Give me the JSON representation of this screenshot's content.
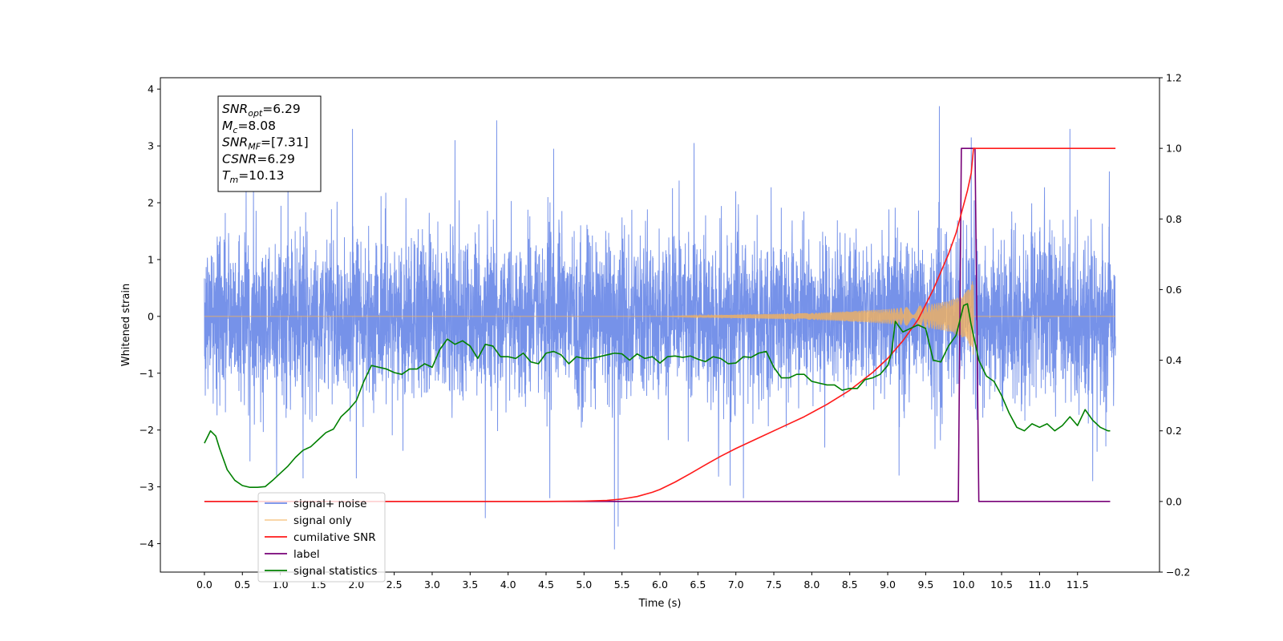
{
  "chart_data": {
    "type": "line",
    "title": "",
    "xlabel": "Time (s)",
    "ylabel": "Whitened strain",
    "xlim": [
      -0.58,
      12.58
    ],
    "ylim": [
      -4.5,
      4.2
    ],
    "y2lim": [
      -0.2,
      1.2
    ],
    "x_ticks": [
      0.0,
      0.5,
      1.0,
      1.5,
      2.0,
      2.5,
      3.0,
      3.5,
      4.0,
      4.5,
      5.0,
      5.5,
      6.0,
      6.5,
      7.0,
      7.5,
      8.0,
      8.5,
      9.0,
      9.5,
      10.0,
      10.5,
      11.0,
      11.5
    ],
    "x_tick_labels": [
      "0.0",
      "0.5",
      "1.0",
      "1.5",
      "2.0",
      "2.5",
      "3.0",
      "3.5",
      "4.0",
      "4.5",
      "5.0",
      "5.5",
      "6.0",
      "6.5",
      "7.0",
      "7.5",
      "8.0",
      "8.5",
      "9.0",
      "9.5",
      "10.0",
      "10.5",
      "11.0",
      "11.5"
    ],
    "y_ticks": [
      4,
      3,
      2,
      1,
      0,
      -1,
      -2,
      -3,
      -4
    ],
    "y_tick_labels": [
      "4",
      "3",
      "2",
      "1",
      "0",
      "−1",
      "−2",
      "−3",
      "−4"
    ],
    "y2_ticks": [
      1.2,
      1.0,
      0.8,
      0.6,
      0.4,
      0.2,
      0.0,
      -0.2
    ],
    "y2_tick_labels": [
      "1.2",
      "1.0",
      "0.8",
      "0.6",
      "0.4",
      "0.2",
      "0.0",
      "−0.2"
    ],
    "grid": false,
    "legend_position": "bottom-left",
    "noise": {
      "x_range": [
        0.0,
        12.0
      ],
      "envelope": [
        1.2,
        1.3
      ],
      "peaks": [
        [
          0.55,
          2.3
        ],
        [
          1.1,
          2.4
        ],
        [
          1.95,
          3.3
        ],
        [
          3.3,
          3.1
        ],
        [
          3.85,
          3.45
        ],
        [
          4.6,
          2.95
        ],
        [
          6.45,
          3.05
        ],
        [
          9.15,
          3.85
        ],
        [
          9.68,
          3.7
        ],
        [
          10.1,
          3.15
        ],
        [
          11.4,
          3.3
        ],
        [
          11.92,
          2.55
        ]
      ],
      "troughs": [
        [
          0.6,
          -2.55
        ],
        [
          0.95,
          -2.8
        ],
        [
          1.3,
          -2.85
        ],
        [
          2.0,
          -2.85
        ],
        [
          3.7,
          -3.55
        ],
        [
          4.55,
          -3.2
        ],
        [
          5.4,
          -4.1
        ],
        [
          5.45,
          -3.7
        ],
        [
          7.1,
          -3.2
        ],
        [
          9.15,
          -2.8
        ],
        [
          11.7,
          -2.9
        ]
      ]
    },
    "series": [
      {
        "name": "signal+ noise",
        "color": "#6f8ce8",
        "axis": "left",
        "kind": "noise"
      },
      {
        "name": "signal only",
        "color": "#f4b25c",
        "axis": "left",
        "kind": "chirp",
        "x": [
          0.0,
          6.0,
          7.0,
          8.0,
          8.5,
          9.0,
          9.5,
          9.8,
          10.0,
          10.1,
          10.13
        ],
        "amplitude": [
          0.0,
          0.0,
          0.03,
          0.06,
          0.09,
          0.13,
          0.2,
          0.27,
          0.38,
          0.55,
          0.7
        ],
        "after": {
          "x": [
            10.13,
            12.0
          ],
          "y": [
            0.0,
            0.0
          ]
        }
      },
      {
        "name": "cumilative SNR",
        "color": "#ff1a1a",
        "axis": "right",
        "x": [
          0.0,
          4.5,
          5.0,
          5.3,
          5.5,
          5.7,
          5.9,
          6.0,
          6.2,
          6.4,
          6.6,
          6.8,
          7.0,
          7.3,
          7.6,
          7.9,
          8.2,
          8.5,
          8.8,
          9.0,
          9.2,
          9.4,
          9.6,
          9.8,
          9.9,
          10.0,
          10.05,
          10.1,
          10.13,
          12.0
        ],
        "values": [
          0.0,
          0.0,
          0.001,
          0.003,
          0.007,
          0.014,
          0.026,
          0.034,
          0.055,
          0.079,
          0.104,
          0.128,
          0.15,
          0.18,
          0.21,
          0.24,
          0.275,
          0.315,
          0.365,
          0.405,
          0.455,
          0.515,
          0.6,
          0.7,
          0.76,
          0.84,
          0.88,
          0.93,
          1.0,
          1.0
        ]
      },
      {
        "name": "label",
        "color": "#770077",
        "axis": "right",
        "x": [
          0.0,
          9.93,
          9.97,
          10.15,
          10.2,
          11.93
        ],
        "values": [
          0.0,
          0.0,
          1.0,
          1.0,
          0.0,
          0.0
        ]
      },
      {
        "name": "signal statistics",
        "color": "#008000",
        "axis": "right",
        "x": [
          0.0,
          0.08,
          0.15,
          0.2,
          0.3,
          0.4,
          0.5,
          0.6,
          0.7,
          0.8,
          0.9,
          1.0,
          1.1,
          1.2,
          1.3,
          1.4,
          1.5,
          1.6,
          1.7,
          1.8,
          1.9,
          2.0,
          2.1,
          2.2,
          2.3,
          2.4,
          2.5,
          2.6,
          2.7,
          2.8,
          2.9,
          3.0,
          3.1,
          3.2,
          3.3,
          3.4,
          3.5,
          3.6,
          3.7,
          3.8,
          3.9,
          4.0,
          4.1,
          4.2,
          4.3,
          4.4,
          4.5,
          4.6,
          4.7,
          4.8,
          4.9,
          5.0,
          5.1,
          5.2,
          5.3,
          5.4,
          5.5,
          5.6,
          5.7,
          5.8,
          5.9,
          6.0,
          6.1,
          6.2,
          6.3,
          6.4,
          6.5,
          6.6,
          6.7,
          6.8,
          6.9,
          7.0,
          7.1,
          7.2,
          7.3,
          7.4,
          7.5,
          7.6,
          7.7,
          7.8,
          7.9,
          8.0,
          8.1,
          8.2,
          8.3,
          8.4,
          8.5,
          8.6,
          8.7,
          8.8,
          8.9,
          9.0,
          9.05,
          9.1,
          9.2,
          9.3,
          9.4,
          9.5,
          9.6,
          9.7,
          9.8,
          9.9,
          10.0,
          10.05,
          10.1,
          10.15,
          10.2,
          10.3,
          10.4,
          10.5,
          10.6,
          10.7,
          10.8,
          10.9,
          11.0,
          11.1,
          11.2,
          11.3,
          11.4,
          11.5,
          11.6,
          11.7,
          11.8,
          11.9,
          11.93
        ],
        "values": [
          0.165,
          0.2,
          0.185,
          0.15,
          0.09,
          0.06,
          0.045,
          0.04,
          0.04,
          0.042,
          0.06,
          0.08,
          0.1,
          0.125,
          0.145,
          0.155,
          0.175,
          0.195,
          0.205,
          0.24,
          0.26,
          0.285,
          0.34,
          0.385,
          0.38,
          0.375,
          0.365,
          0.36,
          0.375,
          0.375,
          0.39,
          0.38,
          0.43,
          0.46,
          0.445,
          0.455,
          0.44,
          0.405,
          0.445,
          0.44,
          0.41,
          0.41,
          0.405,
          0.42,
          0.395,
          0.39,
          0.42,
          0.425,
          0.415,
          0.39,
          0.41,
          0.405,
          0.405,
          0.41,
          0.415,
          0.42,
          0.418,
          0.4,
          0.418,
          0.405,
          0.41,
          0.392,
          0.41,
          0.412,
          0.408,
          0.412,
          0.403,
          0.396,
          0.41,
          0.405,
          0.39,
          0.392,
          0.41,
          0.408,
          0.42,
          0.425,
          0.38,
          0.35,
          0.35,
          0.36,
          0.36,
          0.34,
          0.335,
          0.33,
          0.33,
          0.315,
          0.32,
          0.32,
          0.345,
          0.35,
          0.36,
          0.385,
          0.42,
          0.51,
          0.48,
          0.49,
          0.5,
          0.49,
          0.4,
          0.395,
          0.44,
          0.47,
          0.555,
          0.56,
          0.5,
          0.45,
          0.4,
          0.355,
          0.34,
          0.3,
          0.25,
          0.21,
          0.2,
          0.22,
          0.21,
          0.22,
          0.2,
          0.215,
          0.24,
          0.215,
          0.26,
          0.23,
          0.21,
          0.2,
          0.2
        ]
      }
    ],
    "legend": [
      "signal+ noise",
      "signal only",
      "cumilative SNR",
      "label",
      "signal statistics"
    ],
    "info_box": {
      "lines": [
        {
          "main": "SNR",
          "sub": "opt",
          "value": "=6.29"
        },
        {
          "main": "M",
          "sub": "c",
          "value": "=8.08"
        },
        {
          "main": "SNR",
          "sub": "MF",
          "value": "=[7.31]"
        },
        {
          "main": "CSNR",
          "sub": "",
          "value": "=6.29"
        },
        {
          "main": "T",
          "sub": "m",
          "value": "=10.13"
        }
      ]
    }
  }
}
